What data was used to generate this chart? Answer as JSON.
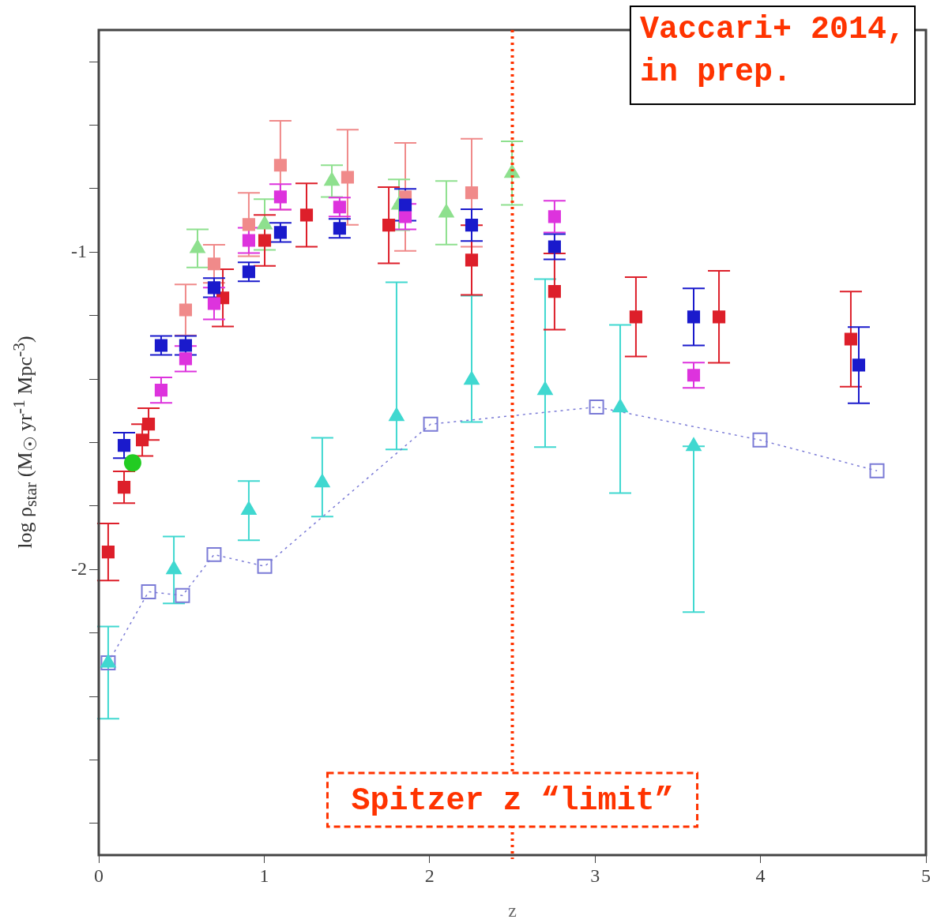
{
  "chart_data": {
    "type": "scatter",
    "xlabel": "z",
    "ylabel": "log ρ$_{star}$ (M$_{☉}$ yr$^{-1}$ Mpc$^{-3}$)",
    "xlim": [
      0,
      5
    ],
    "xticks": [
      0,
      1,
      2,
      3,
      4,
      5
    ],
    "ylim": [
      -2.9,
      -0.3
    ],
    "yticks": [
      {
        "value": -0.4,
        "label": null
      },
      {
        "value": -0.6,
        "label": null
      },
      {
        "value": -0.8,
        "label": null
      },
      -1,
      {
        "value": -1.2,
        "label": null
      },
      {
        "value": -1.4,
        "label": null
      },
      {
        "value": -1.6,
        "label": null
      },
      {
        "value": -1.8,
        "label": null
      },
      -2,
      {
        "value": -2.2,
        "label": null
      },
      {
        "value": -2.4,
        "label": null
      },
      {
        "value": -2.6,
        "label": null
      },
      {
        "value": -2.8,
        "label": null
      }
    ],
    "grid": false,
    "legend": false,
    "series": [
      {
        "type": "line",
        "color": "#7b7bd6",
        "marker": "square",
        "line_style": "dotted",
        "x": [
          0.057,
          0.301,
          0.506,
          0.697,
          1.003,
          2.006,
          3.009,
          3.997,
          4.704
        ],
        "values": [
          -2.294,
          -2.07,
          -2.082,
          -1.953,
          -1.99,
          -1.542,
          -1.488,
          -1.592,
          -1.689
        ]
      },
      {
        "color": "#40d8d0",
        "marker": "triangle",
        "x": [
          0.057,
          0.454,
          0.907,
          1.351,
          1.8,
          2.254,
          2.698,
          3.152,
          3.596
        ],
        "values": [
          -2.294,
          -2.0,
          -1.813,
          -1.726,
          -1.517,
          -1.403,
          -1.435,
          -1.49,
          -1.612
        ],
        "errors": [
          [
            -2.47,
            -2.18
          ],
          [
            -2.107,
            -1.896
          ],
          [
            -1.908,
            -1.721
          ],
          [
            -1.833,
            -1.585
          ],
          [
            -1.622,
            -1.095
          ],
          [
            -1.535,
            -1.137
          ],
          [
            -1.614,
            -1.085
          ],
          [
            -1.759,
            -1.229
          ],
          [
            -2.134,
            -1.612
          ]
        ]
      },
      {
        "color": "#f08a8a",
        "marker": "square",
        "x": [
          0.525,
          0.697,
          0.907,
          1.098,
          1.504,
          1.853,
          2.254
        ],
        "values": [
          -1.182,
          -1.037,
          -0.913,
          -0.726,
          -0.764,
          -0.826,
          -0.813
        ],
        "errors": [
          0.08,
          0.06,
          0.1,
          0.14,
          0.15,
          0.17,
          0.17
        ]
      },
      {
        "color": "#8ee08e",
        "marker": "triangle",
        "x": [
          0.597,
          1.003,
          1.409,
          1.815,
          2.101,
          2.498
        ],
        "values": [
          -0.988,
          -0.913,
          -0.776,
          -0.851,
          -0.876,
          -0.751
        ],
        "errors": [
          0.06,
          0.08,
          0.05,
          0.08,
          0.1,
          0.1
        ]
      },
      {
        "color": "#22cc22",
        "marker": "circle",
        "x": [
          0.205
        ],
        "values": [
          -1.664
        ]
      },
      {
        "color": "#dd1f2a",
        "marker": "square",
        "x": [
          0.057,
          0.153,
          0.263,
          0.301,
          0.75,
          1.003,
          1.256,
          1.753,
          2.254,
          2.755,
          3.247,
          3.749,
          4.546
        ],
        "values": [
          -1.945,
          -1.741,
          -1.592,
          -1.542,
          -1.144,
          -0.963,
          -0.883,
          -0.915,
          -1.025,
          -1.124,
          -1.204,
          -1.204,
          -1.274
        ],
        "errors": [
          0.09,
          0.05,
          0.05,
          0.05,
          0.09,
          0.08,
          0.1,
          0.12,
          0.11,
          0.12,
          0.125,
          0.145,
          0.15
        ]
      },
      {
        "color": "#dd33dd",
        "marker": "square",
        "x": [
          0.377,
          0.525,
          0.697,
          0.907,
          1.098,
          1.456,
          1.853,
          2.755,
          3.596
        ],
        "values": [
          -1.435,
          -1.336,
          -1.162,
          -0.963,
          -0.826,
          -0.858,
          -0.888,
          -0.888,
          -1.388
        ],
        "errors": [
          0.04,
          0.04,
          0.05,
          0.04,
          0.04,
          0.03,
          0.04,
          0.05,
          0.04
        ]
      },
      {
        "color": "#1a1acc",
        "marker": "square",
        "x": [
          0.153,
          0.377,
          0.525,
          0.697,
          0.907,
          1.098,
          1.456,
          1.853,
          2.254,
          2.755,
          3.596,
          4.594
        ],
        "values": [
          -1.609,
          -1.294,
          -1.294,
          -1.112,
          -1.062,
          -0.938,
          -0.925,
          -0.851,
          -0.915,
          -0.983,
          -1.204,
          -1.356
        ],
        "errors": [
          0.04,
          0.03,
          0.03,
          0.03,
          0.03,
          0.03,
          0.03,
          0.05,
          0.05,
          0.04,
          0.09,
          0.12
        ]
      }
    ],
    "ref_lines": [
      {
        "axis": "x",
        "value": 2.5,
        "label": "Spitzer z “limit”",
        "color": "#ff3300",
        "line_style": "dotted"
      }
    ],
    "annotations": [
      "Vaccari+ 2014,\nin prep."
    ]
  }
}
